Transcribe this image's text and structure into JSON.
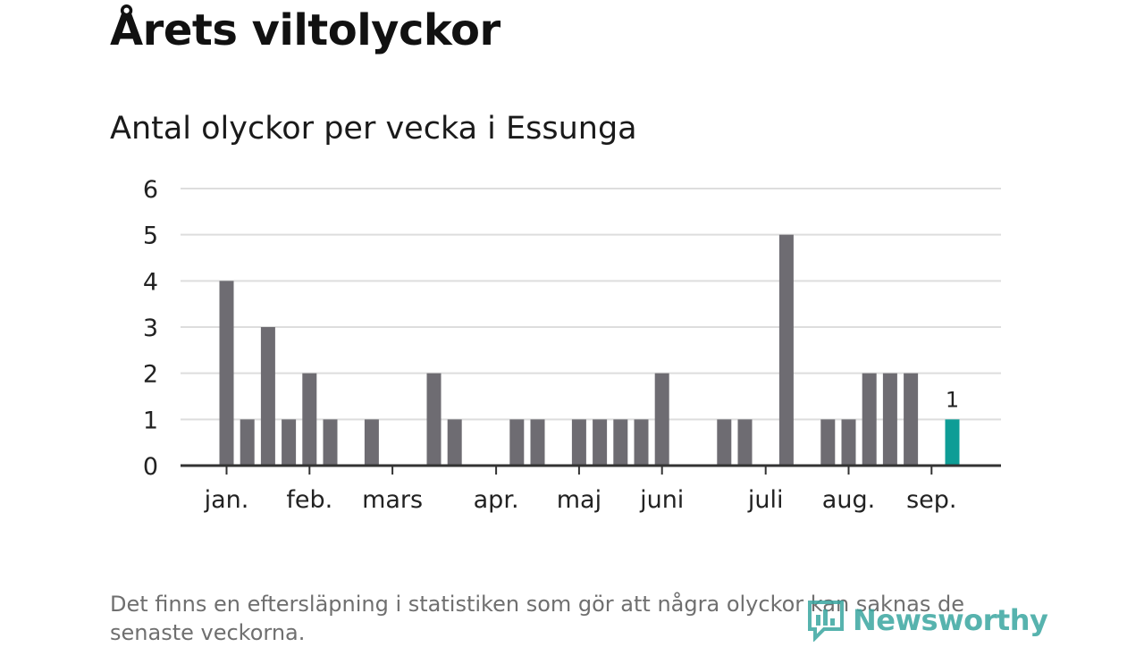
{
  "title": "Årets viltolyckor",
  "subtitle": "Antal olyckor per vecka i Essunga",
  "note": "Det finns en eftersläpning i statistiken som gör att några olyckor kan saknas de senaste veckorna.",
  "logo_text": "Newsworthy",
  "colors": {
    "bar": "#6e6c72",
    "highlight": "#0e9d96",
    "grid": "#dddddd",
    "axis": "#333333"
  },
  "chart_data": {
    "type": "bar",
    "title": "Antal olyckor per vecka i Essunga",
    "xlabel": "",
    "ylabel": "",
    "ylim": [
      0,
      6
    ],
    "yticks": [
      0,
      1,
      2,
      3,
      4,
      5,
      6
    ],
    "grid": true,
    "month_ticks": [
      {
        "label": "jan.",
        "week": 1
      },
      {
        "label": "feb.",
        "week": 5
      },
      {
        "label": "mars",
        "week": 9
      },
      {
        "label": "apr.",
        "week": 14
      },
      {
        "label": "maj",
        "week": 18
      },
      {
        "label": "juni",
        "week": 22
      },
      {
        "label": "juli",
        "week": 27
      },
      {
        "label": "aug.",
        "week": 31
      },
      {
        "label": "sep.",
        "week": 35
      }
    ],
    "weeks": [
      1,
      2,
      3,
      4,
      5,
      6,
      7,
      8,
      9,
      10,
      11,
      12,
      13,
      14,
      15,
      16,
      17,
      18,
      19,
      20,
      21,
      22,
      23,
      24,
      25,
      26,
      27,
      28,
      29,
      30,
      31,
      32,
      33,
      34,
      35,
      36
    ],
    "values": [
      4,
      1,
      3,
      1,
      2,
      1,
      0,
      1,
      0,
      0,
      2,
      1,
      0,
      0,
      1,
      1,
      0,
      1,
      1,
      1,
      1,
      2,
      0,
      0,
      1,
      1,
      0,
      5,
      0,
      1,
      1,
      2,
      2,
      2,
      0,
      1
    ],
    "highlight_index": 35,
    "data_labels": [
      {
        "index": 35,
        "text": "1"
      }
    ]
  }
}
